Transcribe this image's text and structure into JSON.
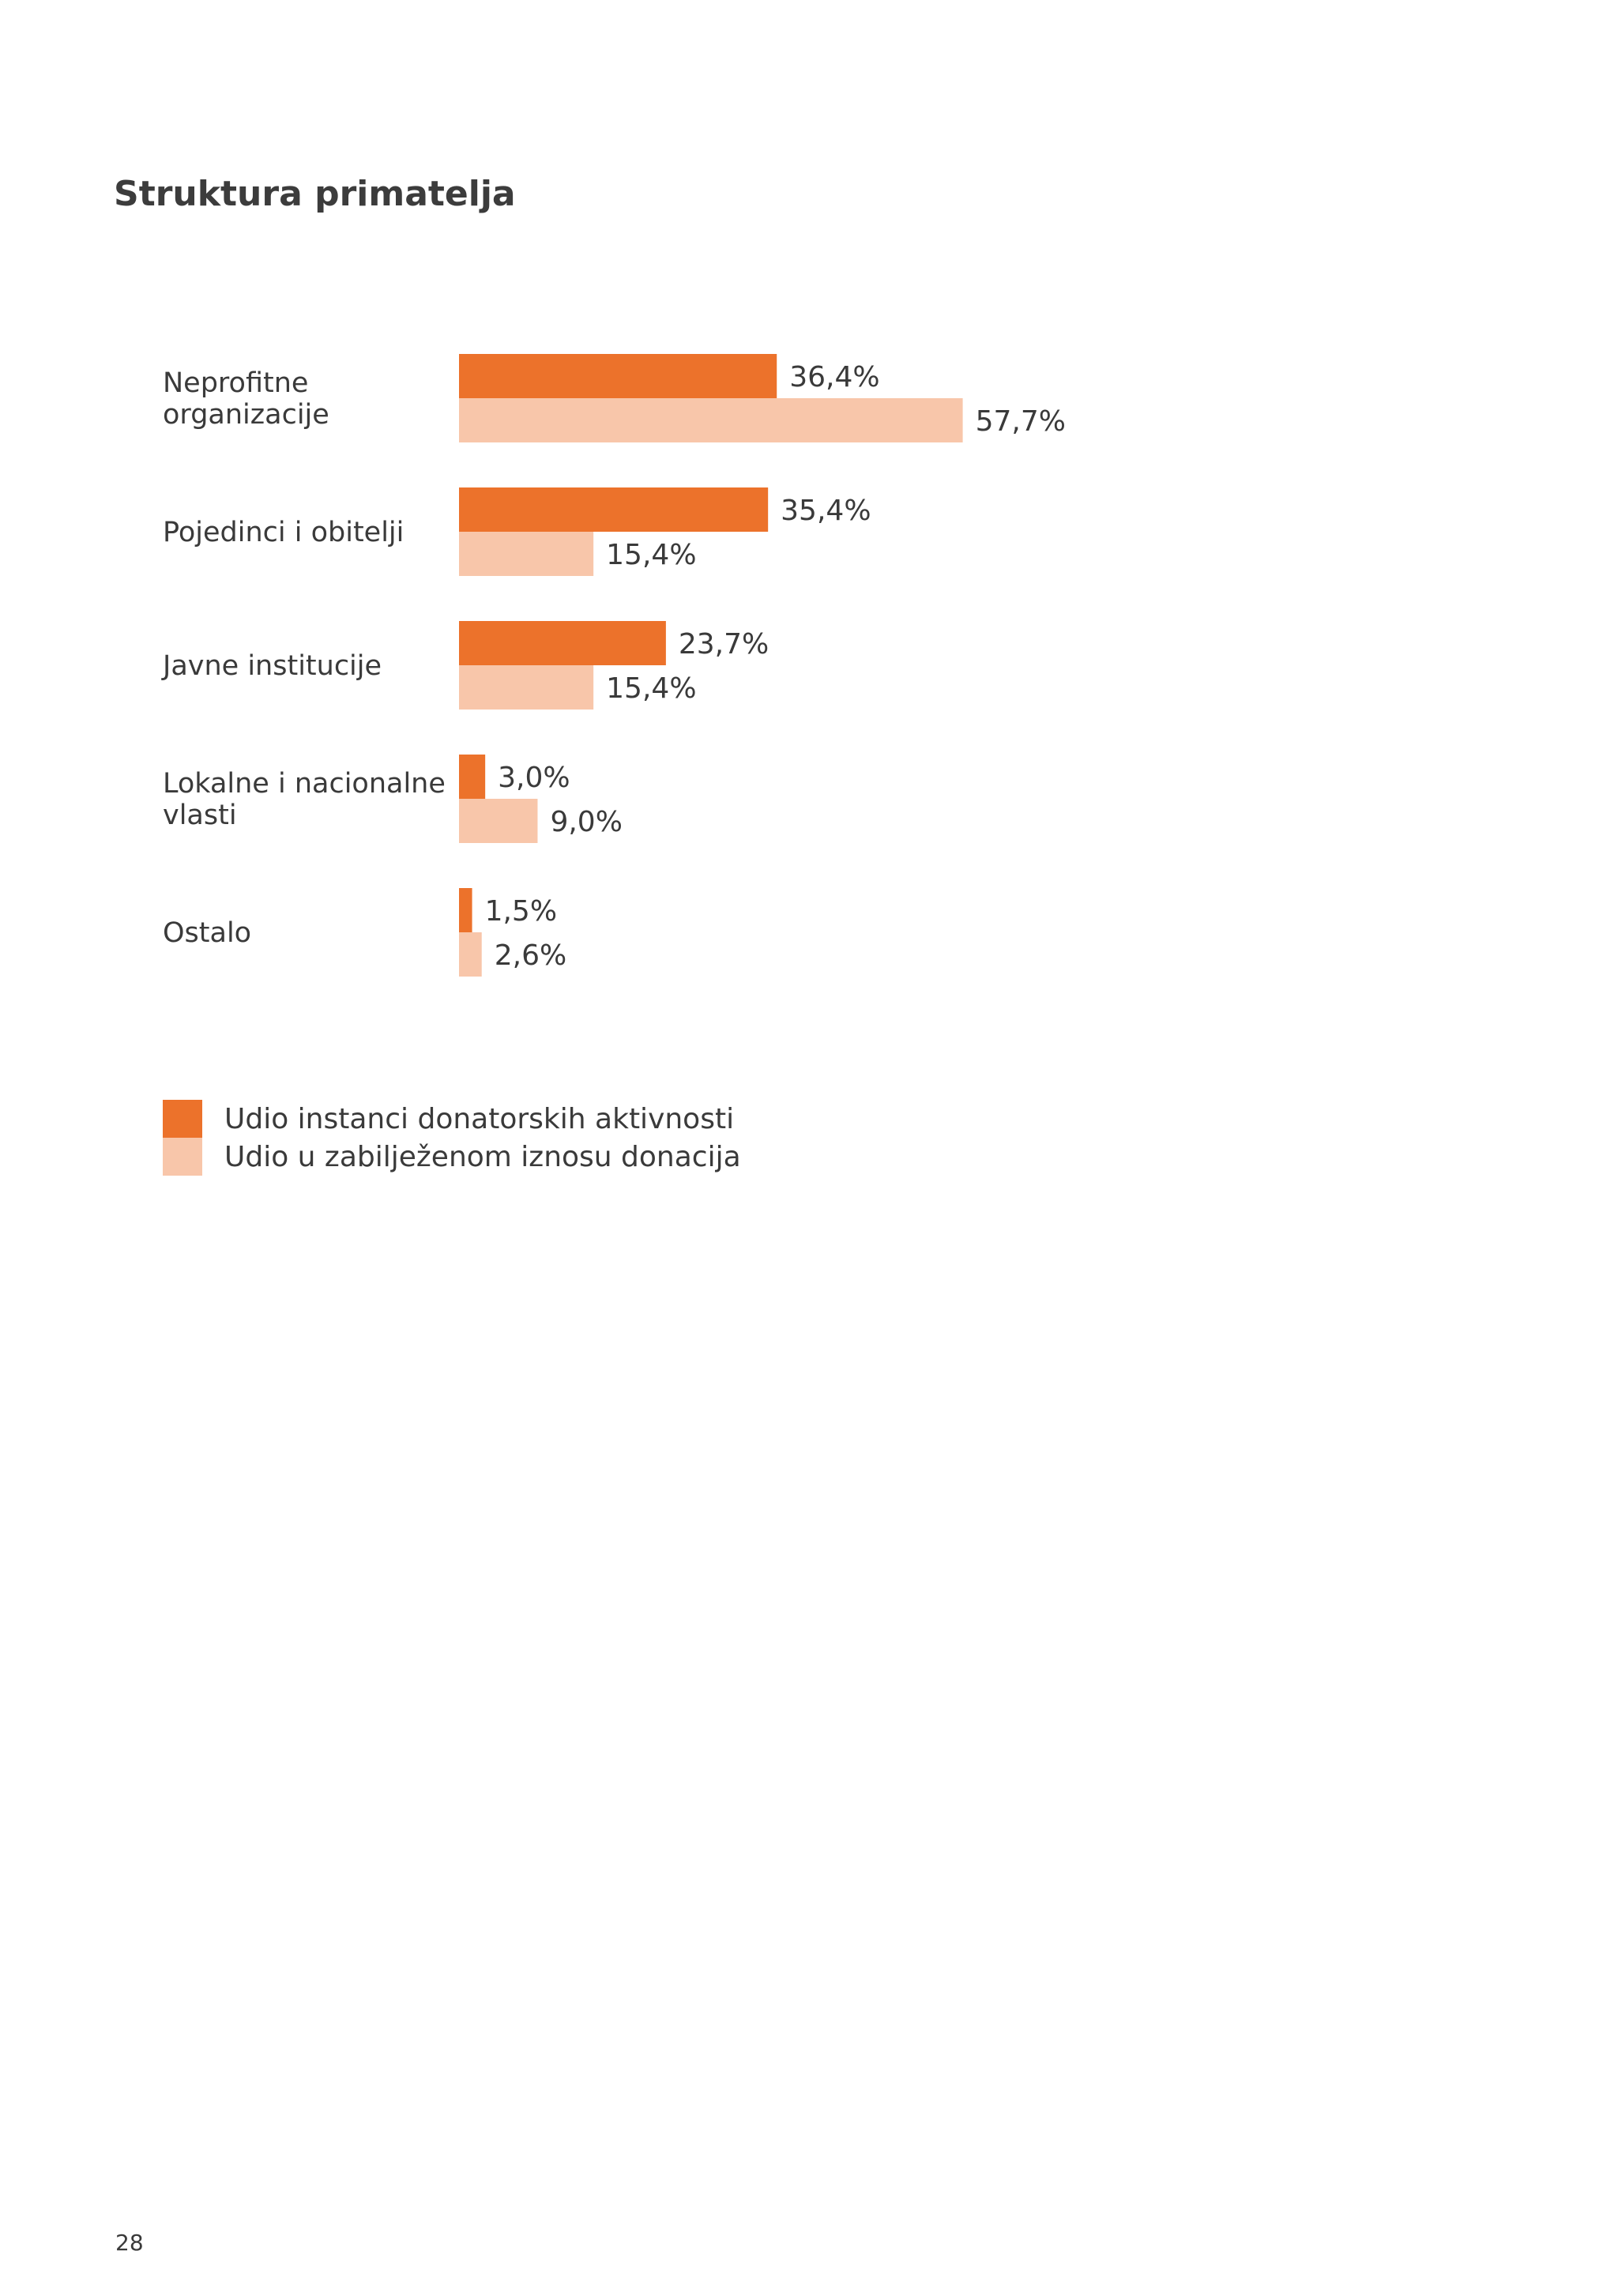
{
  "page": {
    "title": "Struktura primatelja",
    "page_number": "28"
  },
  "colors": {
    "series_1": "#ec722b",
    "series_2": "#f8c6aa",
    "text": "#3a3a3a"
  },
  "chart_data": {
    "type": "bar",
    "orientation": "horizontal",
    "title": "Struktura primatelja",
    "categories": [
      [
        "Neprofitne",
        "organizacije"
      ],
      [
        "Pojedinci i obitelji"
      ],
      [
        "Javne institucije"
      ],
      [
        "Lokalne i nacionalne",
        "vlasti"
      ],
      [
        "Ostalo"
      ]
    ],
    "series": [
      {
        "name": "Udio instanci donatorskih aktivnosti",
        "values": [
          36.4,
          35.4,
          23.7,
          3.0,
          1.5
        ],
        "labels": [
          "36,4%",
          "35,4%",
          "23,7%",
          "3,0%",
          "1,5%"
        ]
      },
      {
        "name": "Udio u zabilježenom iznosu donacija",
        "values": [
          57.7,
          15.4,
          15.4,
          9.0,
          2.6
        ],
        "labels": [
          "57,7%",
          "15,4%",
          "15,4%",
          "9,0%",
          "2,6%"
        ]
      }
    ],
    "xlim": [
      0,
      100
    ],
    "grid": false,
    "legend": "bottom-left"
  },
  "legend": {
    "items": [
      {
        "label": "Udio instanci donatorskih aktivnosti"
      },
      {
        "label": "Udio u zabilježenom iznosu donacija"
      }
    ]
  }
}
